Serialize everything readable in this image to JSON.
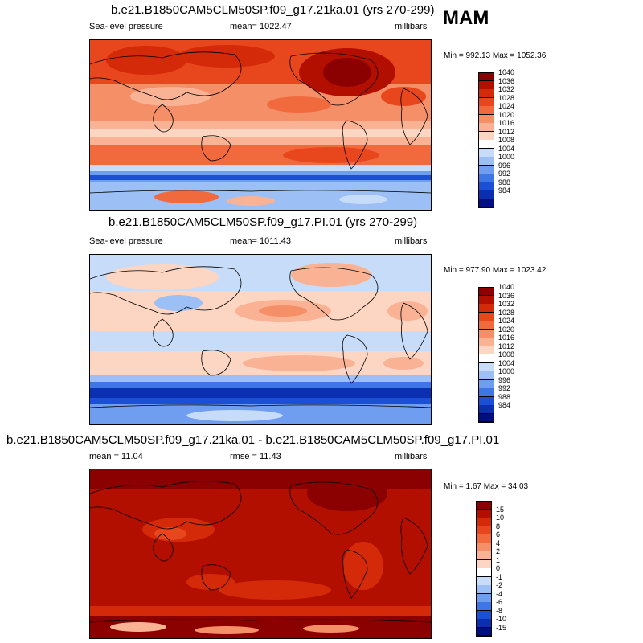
{
  "season": "MAM",
  "panels": [
    {
      "id": "top",
      "title": "b.e21.B1850CAM5CLM50SP.f09_g17.21ka.01 (yrs 270-299)",
      "left_label": "Sea-level pressure",
      "center_label": "mean= 1022.47",
      "right_label": "millibars",
      "minmax": "Min = 992.13 Max = 1052.36",
      "colorbar": {
        "labels": [
          "1040",
          "1036",
          "1032",
          "1028",
          "1024",
          "1020",
          "1016",
          "1012",
          "1008",
          "1004",
          "1000",
          "996",
          "992",
          "988",
          "984"
        ],
        "colors": [
          "#8b0000",
          "#b30f00",
          "#d42a0a",
          "#e8461c",
          "#f06a3e",
          "#f58f67",
          "#f9b394",
          "#fcd6c2",
          "#ffffff",
          "#c7dcf8",
          "#9cc0f5",
          "#6f9ef0",
          "#3f76e6",
          "#1a4fd6",
          "#0a2fb0",
          "#000e80"
        ]
      }
    },
    {
      "id": "middle",
      "title": "b.e21.B1850CAM5CLM50SP.f09_g17.PI.01 (yrs 270-299)",
      "left_label": "Sea-level pressure",
      "center_label": "mean= 1011.43",
      "right_label": "millibars",
      "minmax": "Min = 977.90 Max = 1023.42",
      "colorbar": {
        "labels": [
          "1040",
          "1036",
          "1032",
          "1028",
          "1024",
          "1020",
          "1016",
          "1012",
          "1008",
          "1004",
          "1000",
          "996",
          "992",
          "988",
          "984"
        ],
        "colors": [
          "#8b0000",
          "#b30f00",
          "#d42a0a",
          "#e8461c",
          "#f06a3e",
          "#f58f67",
          "#f9b394",
          "#fcd6c2",
          "#ffffff",
          "#c7dcf8",
          "#9cc0f5",
          "#6f9ef0",
          "#3f76e6",
          "#1a4fd6",
          "#0a2fb0",
          "#000e80"
        ]
      }
    },
    {
      "id": "bottom",
      "title": "b.e21.B1850CAM5CLM50SP.f09_g17.21ka.01 - b.e21.B1850CAM5CLM50SP.f09_g17.PI.01",
      "left_label": "mean =  11.04",
      "center_label": "rmse =  11.43",
      "right_label": "millibars",
      "minmax": "Min =   1.67 Max =  34.03",
      "colorbar": {
        "labels": [
          "15",
          "10",
          "8",
          "6",
          "4",
          "2",
          "1",
          "0",
          "-1",
          "-2",
          "-4",
          "-6",
          "-8",
          "-10",
          "-15"
        ],
        "colors": [
          "#8b0000",
          "#b30f00",
          "#d42a0a",
          "#e8461c",
          "#f06a3e",
          "#f58f67",
          "#f9b394",
          "#fcd6c2",
          "#ffffff",
          "#c7dcf8",
          "#9cc0f5",
          "#6f9ef0",
          "#3f76e6",
          "#1a4fd6",
          "#0a2fb0",
          "#000e80"
        ]
      }
    }
  ],
  "chart_data": [
    {
      "type": "heatmap",
      "title": "b.e21.B1850CAM5CLM50SP.f09_g17.21ka.01 (yrs 270-299)",
      "variable": "Sea-level pressure",
      "units": "millibars",
      "mean": 1022.47,
      "min": 992.13,
      "max": 1052.36,
      "contour_levels": [
        984,
        988,
        992,
        996,
        1000,
        1004,
        1008,
        1012,
        1016,
        1020,
        1024,
        1028,
        1032,
        1036,
        1040
      ]
    },
    {
      "type": "heatmap",
      "title": "b.e21.B1850CAM5CLM50SP.f09_g17.PI.01 (yrs 270-299)",
      "variable": "Sea-level pressure",
      "units": "millibars",
      "mean": 1011.43,
      "min": 977.9,
      "max": 1023.42,
      "contour_levels": [
        984,
        988,
        992,
        996,
        1000,
        1004,
        1008,
        1012,
        1016,
        1020,
        1024,
        1028,
        1032,
        1036,
        1040
      ]
    },
    {
      "type": "heatmap",
      "title": "b.e21.B1850CAM5CLM50SP.f09_g17.21ka.01 - b.e21.B1850CAM5CLM50SP.f09_g17.PI.01",
      "variable": "Sea-level pressure difference",
      "units": "millibars",
      "mean": 11.04,
      "rmse": 11.43,
      "min": 1.67,
      "max": 34.03,
      "contour_levels": [
        -15,
        -10,
        -8,
        -6,
        -4,
        -2,
        -1,
        0,
        1,
        2,
        4,
        6,
        8,
        10,
        15
      ]
    }
  ]
}
